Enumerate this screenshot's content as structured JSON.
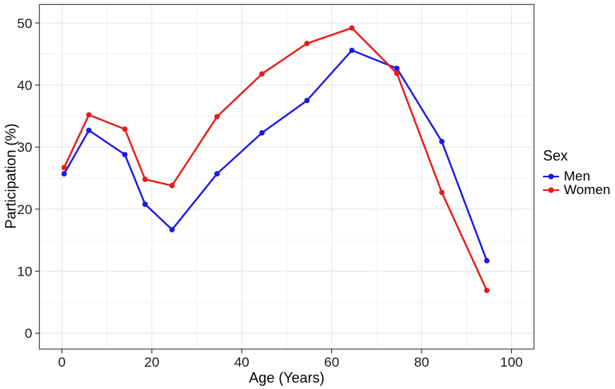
{
  "chart_data": {
    "type": "line",
    "title": "",
    "xlabel": "Age (Years)",
    "ylabel": "Participation (%)",
    "x_ticks": [
      0,
      20,
      40,
      60,
      80,
      100
    ],
    "y_ticks": [
      0,
      10,
      20,
      30,
      40,
      50
    ],
    "xlim": [
      -5,
      105
    ],
    "ylim": [
      -2.55,
      53.0
    ],
    "grid": true,
    "legend_title": "Sex",
    "legend_position": "right",
    "x": [
      0.5,
      6,
      14,
      18.5,
      24.5,
      34.5,
      44.5,
      54.5,
      64.5,
      74.5,
      84.5,
      94.5
    ],
    "series": [
      {
        "name": "Men",
        "color": "#1a1ae8",
        "values": [
          25.7,
          32.7,
          28.8,
          20.8,
          16.7,
          25.7,
          32.3,
          37.5,
          45.6,
          42.7,
          30.9,
          11.7
        ]
      },
      {
        "name": "Women",
        "color": "#e81a1a",
        "values": [
          26.7,
          35.2,
          32.9,
          24.8,
          23.8,
          34.9,
          41.8,
          46.7,
          49.2,
          41.9,
          22.7,
          6.9
        ]
      }
    ]
  }
}
